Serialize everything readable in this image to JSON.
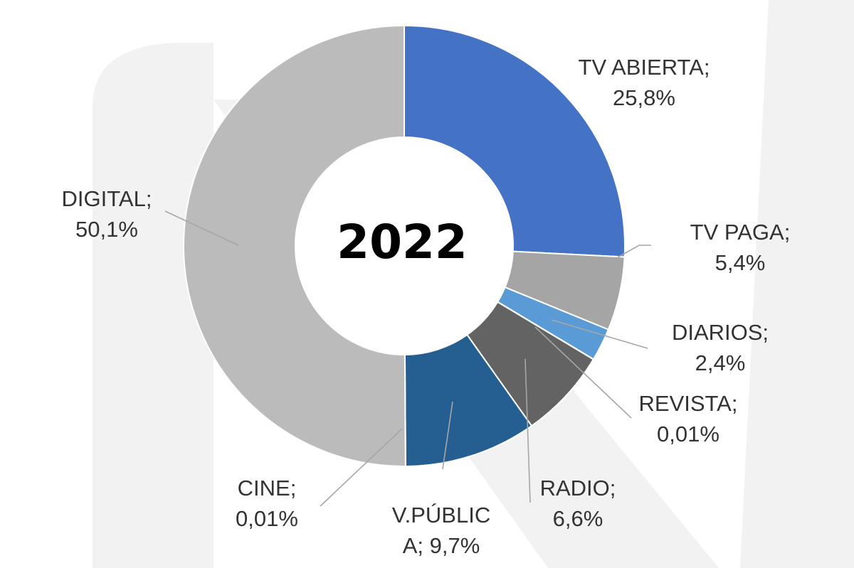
{
  "chart_data": {
    "type": "pie",
    "variant": "donut",
    "center_label": "2022",
    "unit": "%",
    "slices": [
      {
        "label": "TV ABIERTA",
        "value": 25.8,
        "value_text": "25,8%",
        "label_lines": [
          "TV ABIERTA;",
          "25,8%"
        ],
        "color": "#4472C4"
      },
      {
        "label": "TV PAGA",
        "value": 5.4,
        "value_text": "5,4%",
        "label_lines": [
          "TV PAGA;",
          "5,4%"
        ],
        "color": "#A5A5A5"
      },
      {
        "label": "DIARIOS",
        "value": 2.4,
        "value_text": "2,4%",
        "label_lines": [
          "DIARIOS;",
          "2,4%"
        ],
        "color": "#5B9BD5"
      },
      {
        "label": "REVISTA",
        "value": 0.01,
        "value_text": "0,01%",
        "label_lines": [
          "REVISTA;",
          "0,01%"
        ],
        "color": "#70AD47"
      },
      {
        "label": "RADIO",
        "value": 6.6,
        "value_text": "6,6%",
        "label_lines": [
          "RADIO;",
          "6,6%"
        ],
        "color": "#636363"
      },
      {
        "label": "V.PÚBLICA",
        "value": 9.7,
        "value_text": "9,7%",
        "label_lines": [
          "V.PÚBLIC",
          "A; 9,7%"
        ],
        "color": "#255E91"
      },
      {
        "label": "CINE",
        "value": 0.01,
        "value_text": "0,01%",
        "label_lines": [
          "CINE;",
          "0,01%"
        ],
        "color": "#9E480E"
      },
      {
        "label": "DIGITAL",
        "value": 50.1,
        "value_text": "50,1%",
        "label_lines": [
          "DIGITAL;",
          "50,1%"
        ],
        "color": "#BBBBBB"
      }
    ]
  }
}
